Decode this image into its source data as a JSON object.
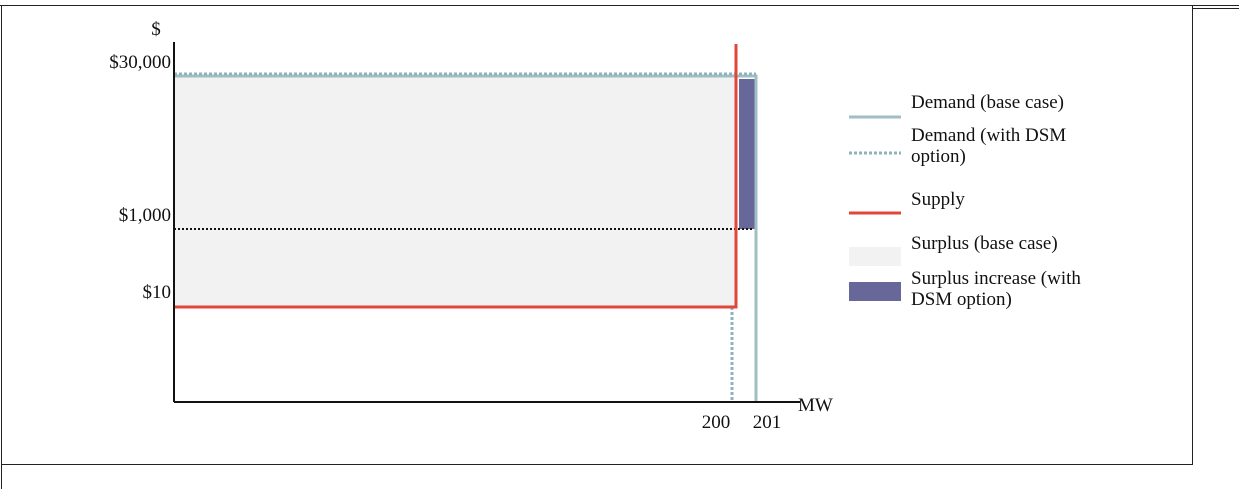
{
  "chart_data": {
    "type": "area",
    "y_axis_label": "$",
    "x_axis_label": "MW",
    "y_ticks": [
      "$30,000",
      "$1,000",
      "$10"
    ],
    "x_ticks": [
      "200",
      "201"
    ],
    "scale": "stylized, not to scale",
    "demand_base_case": {
      "price_cap": 30000,
      "quantity_mw": 201
    },
    "demand_with_dsm": {
      "price_cap": 30000,
      "quantity_mw": 200,
      "dsm_price": 1000
    },
    "supply": {
      "price": 10,
      "capacity_mw": 200
    },
    "legend": [
      {
        "key": "demand_base",
        "label_lines": [
          "Demand (base case)"
        ]
      },
      {
        "key": "demand_dsm",
        "label_lines": [
          "Demand (with DSM",
          "option)"
        ]
      },
      {
        "key": "supply",
        "label_lines": [
          "Supply"
        ]
      },
      {
        "key": "surplus_base",
        "label_lines": [
          "Surplus (base case)"
        ]
      },
      {
        "key": "surplus_increase",
        "label_lines": [
          "Surplus increase (with",
          "DSM option)"
        ]
      }
    ],
    "legend_position": "right"
  },
  "colors": {
    "demand_base": "#9fbfc2",
    "demand_dsm": "#8fb3bc",
    "supply": "#e0463a",
    "surplus_base": "#f2f2f2",
    "surplus_increase": "#67679a",
    "axis": "#111111"
  }
}
